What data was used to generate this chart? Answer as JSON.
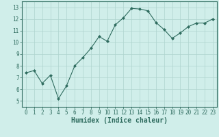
{
  "x": [
    0,
    1,
    2,
    3,
    4,
    5,
    6,
    7,
    8,
    9,
    10,
    11,
    12,
    13,
    14,
    15,
    16,
    17,
    18,
    19,
    20,
    21,
    22,
    23
  ],
  "y": [
    7.4,
    7.6,
    6.5,
    7.2,
    5.2,
    6.3,
    8.0,
    8.7,
    9.5,
    10.5,
    10.1,
    11.5,
    12.1,
    12.9,
    12.85,
    12.7,
    11.7,
    11.1,
    10.35,
    10.8,
    11.35,
    11.65,
    11.65,
    12.0
  ],
  "line_color": "#2e6b5e",
  "marker": "D",
  "marker_size": 2.0,
  "background_color": "#d0eeea",
  "grid_color": "#aed4ce",
  "xlabel": "Humidex (Indice chaleur)",
  "xlim": [
    -0.5,
    23.5
  ],
  "ylim": [
    4.5,
    13.5
  ],
  "xticks": [
    0,
    1,
    2,
    3,
    4,
    5,
    6,
    7,
    8,
    9,
    10,
    11,
    12,
    13,
    14,
    15,
    16,
    17,
    18,
    19,
    20,
    21,
    22,
    23
  ],
  "yticks": [
    5,
    6,
    7,
    8,
    9,
    10,
    11,
    12,
    13
  ],
  "tick_fontsize": 5.5,
  "xlabel_fontsize": 7.0,
  "tick_color": "#2e6b5e",
  "axis_color": "#2e6b5e",
  "line_width": 0.8
}
